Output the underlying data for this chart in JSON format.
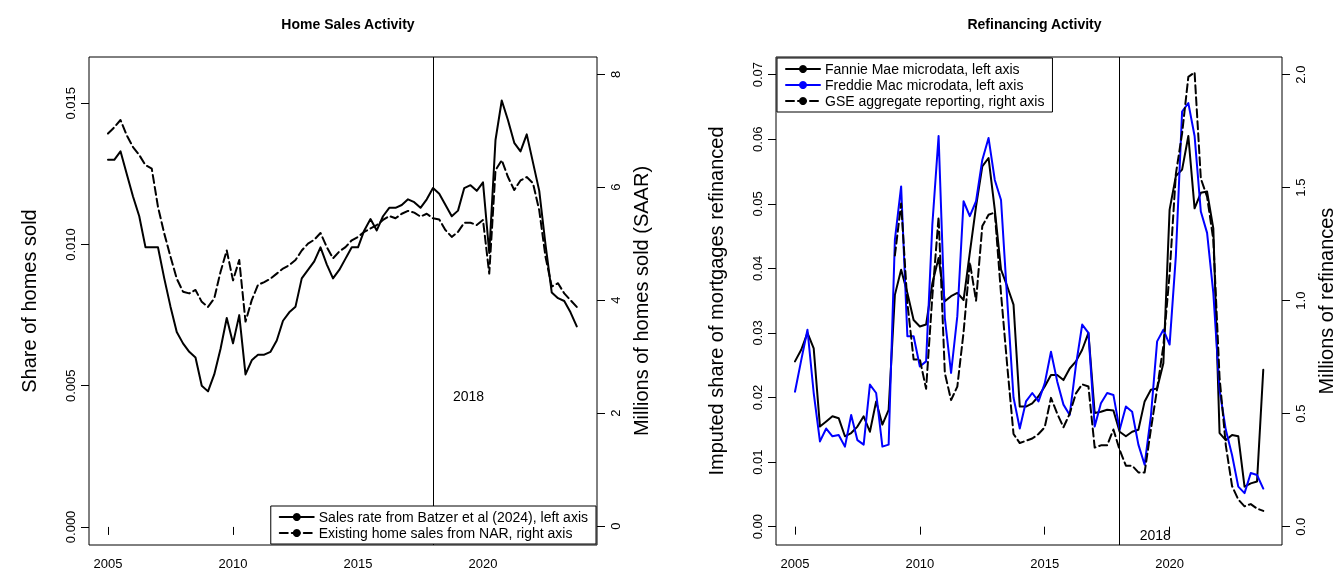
{
  "chart_data": [
    {
      "type": "line",
      "title": "Home Sales Activity",
      "ylabel": "Share of homes sold",
      "y2label": "Millions of homes sold (SAAR)",
      "x": [
        2005,
        2005.25,
        2005.5,
        2005.75,
        2006,
        2006.25,
        2006.5,
        2006.75,
        2007,
        2007.25,
        2007.5,
        2007.75,
        2008,
        2008.25,
        2008.5,
        2008.75,
        2009,
        2009.25,
        2009.5,
        2009.75,
        2010,
        2010.25,
        2010.5,
        2010.75,
        2011,
        2011.25,
        2011.5,
        2011.75,
        2012,
        2012.25,
        2012.5,
        2012.75,
        2013,
        2013.25,
        2013.5,
        2013.75,
        2014,
        2014.25,
        2014.5,
        2014.75,
        2015,
        2015.25,
        2015.5,
        2015.75,
        2016,
        2016.25,
        2016.5,
        2016.75,
        2017,
        2017.25,
        2017.5,
        2017.75,
        2018,
        2018.25,
        2018.5,
        2018.75,
        2019,
        2019.25,
        2019.5,
        2019.75,
        2020,
        2020.25,
        2020.5,
        2020.75,
        2021,
        2021.25,
        2021.5,
        2021.75,
        2022,
        2022.25,
        2022.5,
        2022.75,
        2023,
        2023.25,
        2023.5,
        2023.75
      ],
      "series": [
        {
          "name": "Sales rate from Batzer et al (2024), left axis",
          "color": "#000000",
          "line_style": "solid",
          "axis": "y",
          "values": [
            0.013,
            0.013,
            0.0133,
            0.0125,
            0.0117,
            0.011,
            0.0099,
            0.0099,
            0.0099,
            0.0088,
            0.0078,
            0.0069,
            0.0065,
            0.0062,
            0.006,
            0.005,
            0.0048,
            0.0054,
            0.0063,
            0.0074,
            0.0065,
            0.0075,
            0.0054,
            0.0059,
            0.0061,
            0.0061,
            0.0062,
            0.0066,
            0.0073,
            0.0076,
            0.0078,
            0.0088,
            0.0091,
            0.0094,
            0.0099,
            0.0093,
            0.0088,
            0.0091,
            0.0095,
            0.0099,
            0.0099,
            0.0105,
            0.0109,
            0.0105,
            0.011,
            0.0113,
            0.0113,
            0.0114,
            0.0116,
            0.0115,
            0.0113,
            0.0116,
            0.012,
            0.0118,
            0.0114,
            0.011,
            0.0112,
            0.012,
            0.0121,
            0.0119,
            0.0122,
            0.0097,
            0.0137,
            0.0151,
            0.0144,
            0.0136,
            0.0133,
            0.0139,
            0.0129,
            0.0119,
            0.01,
            0.0083,
            0.0081,
            0.008,
            0.0076,
            0.0071
          ]
        },
        {
          "name": "Existing home sales from NAR, right axis",
          "color": "#000000",
          "line_style": "dashed",
          "axis": "y2",
          "values": [
            6.95,
            7.06,
            7.19,
            6.92,
            6.71,
            6.57,
            6.39,
            6.33,
            5.65,
            5.18,
            4.77,
            4.38,
            4.15,
            4.12,
            4.18,
            3.97,
            3.88,
            4.03,
            4.5,
            4.88,
            4.35,
            4.71,
            3.62,
            4.0,
            4.27,
            4.32,
            4.38,
            4.47,
            4.56,
            4.62,
            4.71,
            4.88,
            5.0,
            5.07,
            5.19,
            4.94,
            4.74,
            4.86,
            4.94,
            5.06,
            5.12,
            5.21,
            5.27,
            5.33,
            5.42,
            5.49,
            5.45,
            5.53,
            5.58,
            5.55,
            5.48,
            5.53,
            5.45,
            5.43,
            5.24,
            5.12,
            5.21,
            5.37,
            5.37,
            5.33,
            5.42,
            4.47,
            6.3,
            6.48,
            6.18,
            5.95,
            6.12,
            6.18,
            6.07,
            5.59,
            4.77,
            4.24,
            4.3,
            4.12,
            4.0,
            3.88
          ]
        }
      ],
      "xlim": [
        2004.24,
        2024.56
      ],
      "xticks": [
        2005,
        2010,
        2015,
        2020
      ],
      "ylim": [
        -0.00064,
        0.01664
      ],
      "yticks": [
        {
          "value": 0,
          "label": "0.000"
        },
        {
          "value": 0.005,
          "label": "0.005"
        },
        {
          "value": 0.01,
          "label": "0.010"
        },
        {
          "value": 0.015,
          "label": "0.015"
        }
      ],
      "y2lim": [
        -0.336,
        8.306
      ],
      "y2ticks": [
        0,
        2,
        4,
        6,
        8
      ],
      "ref_lines": [
        {
          "axis": "x",
          "value": 2018,
          "label": "2018",
          "color": "#000000"
        }
      ],
      "legend": "bottom right"
    },
    {
      "type": "line",
      "title": "Refinancing Activity",
      "ylabel": "Imputed share of mortgages refinanced",
      "y2label": "Millions of refinances",
      "x": [
        2005,
        2005.25,
        2005.5,
        2005.75,
        2006,
        2006.25,
        2006.5,
        2006.75,
        2007,
        2007.25,
        2007.5,
        2007.75,
        2008,
        2008.25,
        2008.5,
        2008.75,
        2009,
        2009.25,
        2009.5,
        2009.75,
        2010,
        2010.25,
        2010.5,
        2010.75,
        2011,
        2011.25,
        2011.5,
        2011.75,
        2012,
        2012.25,
        2012.5,
        2012.75,
        2013,
        2013.25,
        2013.5,
        2013.75,
        2014,
        2014.25,
        2014.5,
        2014.75,
        2015,
        2015.25,
        2015.5,
        2015.75,
        2016,
        2016.25,
        2016.5,
        2016.75,
        2017,
        2017.25,
        2017.5,
        2017.75,
        2018,
        2018.25,
        2018.5,
        2018.75,
        2019,
        2019.25,
        2019.5,
        2019.75,
        2020,
        2020.25,
        2020.5,
        2020.75,
        2021,
        2021.25,
        2021.5,
        2021.75,
        2022,
        2022.25,
        2022.5,
        2022.75,
        2023,
        2023.25,
        2023.5,
        2023.75
      ],
      "series": [
        {
          "name": "Fannie Mae microdata, left axis",
          "color": "#000000",
          "line_style": "solid",
          "axis": "y",
          "values": [
            0.0256,
            0.0274,
            0.03,
            0.0276,
            0.0155,
            0.0163,
            0.0171,
            0.0168,
            0.014,
            0.0145,
            0.0155,
            0.0171,
            0.0147,
            0.0194,
            0.0158,
            0.0181,
            0.0359,
            0.0398,
            0.0362,
            0.032,
            0.031,
            0.0313,
            0.0377,
            0.0416,
            0.0349,
            0.0357,
            0.0362,
            0.0351,
            0.0424,
            0.0496,
            0.0558,
            0.0571,
            0.0491,
            0.0398,
            0.0372,
            0.0344,
            0.0186,
            0.0186,
            0.0191,
            0.0202,
            0.0217,
            0.0235,
            0.0235,
            0.0227,
            0.0245,
            0.0256,
            0.0274,
            0.03,
            0.0176,
            0.0178,
            0.0181,
            0.018,
            0.0147,
            0.014,
            0.0147,
            0.015,
            0.0194,
            0.0212,
            0.0214,
            0.0253,
            0.0491,
            0.0543,
            0.0553,
            0.0605,
            0.0493,
            0.0517,
            0.0519,
            0.0462,
            0.0145,
            0.0134,
            0.0142,
            0.014,
            0.0062,
            0.0067,
            0.007,
            0.0243
          ]
        },
        {
          "name": "Freddie Mac microdata, left axis",
          "color": "#0000ff",
          "line_style": "solid",
          "axis": "y",
          "values": [
            0.0209,
            0.0258,
            0.0305,
            0.0207,
            0.0132,
            0.0152,
            0.014,
            0.0142,
            0.0124,
            0.0173,
            0.0134,
            0.0127,
            0.022,
            0.0207,
            0.0124,
            0.0127,
            0.0444,
            0.0527,
            0.0295,
            0.0295,
            0.0248,
            0.0256,
            0.0468,
            0.0605,
            0.0323,
            0.0238,
            0.0326,
            0.0504,
            0.0481,
            0.0504,
            0.0568,
            0.0602,
            0.0537,
            0.0506,
            0.035,
            0.02,
            0.0152,
            0.0194,
            0.0207,
            0.0194,
            0.0222,
            0.0271,
            0.0225,
            0.0189,
            0.0173,
            0.025,
            0.0313,
            0.03,
            0.0155,
            0.0191,
            0.0207,
            0.0204,
            0.015,
            0.0186,
            0.0178,
            0.0127,
            0.0096,
            0.0171,
            0.0287,
            0.0305,
            0.0282,
            0.0419,
            0.0643,
            0.0656,
            0.0605,
            0.0488,
            0.0455,
            0.0362,
            0.0212,
            0.015,
            0.0111,
            0.0062,
            0.0052,
            0.0083,
            0.008,
            0.0059
          ]
        },
        {
          "name": "GSE aggregate reporting, right axis",
          "color": "#000000",
          "line_style": "dashed",
          "axis": "y2",
          "values": [
            null,
            null,
            null,
            null,
            null,
            null,
            null,
            null,
            null,
            null,
            null,
            null,
            null,
            null,
            null,
            null,
            1.2,
            1.43,
            0.99,
            0.74,
            0.74,
            0.61,
            1.02,
            1.37,
            0.68,
            0.56,
            0.62,
            0.86,
            1.17,
            1.0,
            1.33,
            1.38,
            1.39,
            1.03,
            0.71,
            0.41,
            0.37,
            0.38,
            0.39,
            0.41,
            0.44,
            0.57,
            0.5,
            0.44,
            0.5,
            0.59,
            0.63,
            0.62,
            0.35,
            0.36,
            0.36,
            0.43,
            0.34,
            0.27,
            0.27,
            0.24,
            0.24,
            0.43,
            0.61,
            0.8,
            1.12,
            1.56,
            1.74,
            1.99,
            2.01,
            1.54,
            1.46,
            1.27,
            0.66,
            0.36,
            0.18,
            0.12,
            0.09,
            0.1,
            0.08,
            0.07
          ]
        }
      ],
      "xlim": [
        2004.24,
        2024.5
      ],
      "xticks": [
        2005,
        2010,
        2015,
        2020
      ],
      "ylim": [
        -0.00284,
        0.07274
      ],
      "yticks": [
        {
          "value": 0,
          "label": "0.00"
        },
        {
          "value": 0.01,
          "label": "0.01"
        },
        {
          "value": 0.02,
          "label": "0.02"
        },
        {
          "value": 0.03,
          "label": "0.03"
        },
        {
          "value": 0.04,
          "label": "0.04"
        },
        {
          "value": 0.05,
          "label": "0.05"
        },
        {
          "value": 0.06,
          "label": "0.06"
        },
        {
          "value": 0.07,
          "label": "0.07"
        }
      ],
      "y2lim": [
        -0.081,
        2.078
      ],
      "y2ticks": [
        {
          "value": 0,
          "label": "0.0"
        },
        {
          "value": 0.5,
          "label": "0.5"
        },
        {
          "value": 1,
          "label": "1.0"
        },
        {
          "value": 1.5,
          "label": "1.5"
        },
        {
          "value": 2,
          "label": "2.0"
        }
      ],
      "ref_lines": [
        {
          "axis": "x",
          "value": 2018,
          "label": "2018",
          "color": "#000000"
        }
      ],
      "legend": "top left"
    }
  ]
}
